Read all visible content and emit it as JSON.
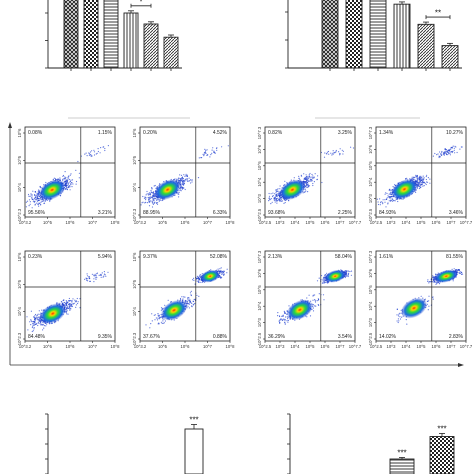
{
  "chart_data": [
    {
      "type": "bar",
      "panel": "top-left",
      "categories": [
        "",
        "",
        "",
        "",
        "",
        ""
      ],
      "values": [
        100,
        84,
        72,
        50,
        40,
        28
      ],
      "errors": [
        4,
        3,
        3,
        2,
        2,
        2
      ],
      "patterns": [
        "cross",
        "check",
        "hlines",
        "vlines",
        "dense",
        "dense"
      ],
      "annotations": [
        {
          "from": 1,
          "to": 2,
          "label": "*"
        },
        {
          "from": 2,
          "to": 3,
          "label": "*"
        },
        {
          "from": 3,
          "to": 4,
          "label": "*"
        }
      ],
      "ylim": [
        0,
        100
      ],
      "title": "",
      "xlabel": "",
      "ylabel": ""
    },
    {
      "type": "bar",
      "panel": "top-right",
      "categories": [
        "",
        "",
        "",
        "",
        "",
        ""
      ],
      "values": [
        100,
        87,
        73,
        57,
        39,
        20
      ],
      "errors": [
        4,
        3,
        3,
        2,
        2,
        2
      ],
      "patterns": [
        "cross",
        "check",
        "hlines",
        "vlines",
        "dense",
        "dense"
      ],
      "annotations": [
        {
          "from": 1,
          "to": 2,
          "label": "**"
        },
        {
          "from": 2,
          "to": 3,
          "label": "**"
        },
        {
          "from": 3,
          "to": 4,
          "label": "**"
        },
        {
          "from": 4,
          "to": 5,
          "label": "**"
        }
      ],
      "ylim": [
        0,
        100
      ],
      "title": "",
      "xlabel": "",
      "ylabel": ""
    },
    {
      "type": "scatter",
      "panel": "flow-left-group",
      "plots": [
        {
          "UL": "0.08%",
          "UR": "1.15%",
          "LL": "95.56%",
          "LR": "3.21%",
          "xticks": [
            "10^3.2",
            "10^5",
            "10^6",
            "10^7",
            "10^8"
          ],
          "yticks": [
            "10^6",
            "10^5",
            "10^4",
            "10^2.3"
          ]
        },
        {
          "UL": "0.20%",
          "UR": "4.52%",
          "LL": "88.95%",
          "LR": "6.33%",
          "xticks": [
            "10^3.2",
            "10^5",
            "10^6",
            "10^7",
            "10^8"
          ],
          "yticks": [
            "10^6",
            "10^5",
            "10^4",
            "10^2.3"
          ]
        },
        {
          "UL": "0.23%",
          "UR": "5.94%",
          "LL": "84.48%",
          "LR": "9.35%",
          "xticks": [
            "10^3.2",
            "10^5",
            "10^6",
            "10^7",
            "10^8"
          ],
          "yticks": [
            "10^6",
            "10^5",
            "10^4",
            "10^2.3"
          ]
        },
        {
          "UL": "9.37%",
          "UR": "52.08%",
          "LL": "37.67%",
          "LR": "0.88%",
          "xticks": [
            "10^3.2",
            "10^5",
            "10^6",
            "10^7",
            "10^8"
          ],
          "yticks": [
            "10^6",
            "10^5",
            "10^4",
            "10^2.3"
          ]
        }
      ]
    },
    {
      "type": "scatter",
      "panel": "flow-right-group",
      "plots": [
        {
          "UL": "0.82%",
          "UR": "3.25%",
          "LL": "93.68%",
          "LR": "2.25%",
          "xticks": [
            "10^2.5",
            "10^3",
            "10^4",
            "10^5",
            "10^6",
            "10^7",
            "10^7.7"
          ],
          "yticks": [
            "10^7.3",
            "10^6",
            "10^5",
            "10^4",
            "10^3",
            "10^2.5"
          ]
        },
        {
          "UL": "1.34%",
          "UR": "10.27%",
          "LL": "84.93%",
          "LR": "3.46%",
          "xticks": [
            "10^2.5",
            "10^3",
            "10^4",
            "10^5",
            "10^6",
            "10^7",
            "10^7.7"
          ],
          "yticks": [
            "10^7.3",
            "10^6",
            "10^5",
            "10^4",
            "10^3",
            "10^2.5"
          ]
        },
        {
          "UL": "2.13%",
          "UR": "58.04%",
          "LL": "36.29%",
          "LR": "3.54%",
          "xticks": [
            "10^2.5",
            "10^3",
            "10^4",
            "10^5",
            "10^6",
            "10^7",
            "10^7.7"
          ],
          "yticks": [
            "10^7.3",
            "10^6",
            "10^5",
            "10^4",
            "10^3",
            "10^2.5"
          ]
        },
        {
          "UL": "1.61%",
          "UR": "81.55%",
          "LL": "14.02%",
          "LR": "2.83%",
          "xticks": [
            "10^2.5",
            "10^3",
            "10^4",
            "10^5",
            "10^6",
            "10^7",
            "10^7.7"
          ],
          "yticks": [
            "10^7.3",
            "10^6",
            "10^5",
            "10^4",
            "10^3",
            "10^2.5"
          ]
        }
      ]
    },
    {
      "type": "bar",
      "panel": "bottom-left",
      "categories": [
        "",
        ""
      ],
      "values": [
        0,
        30
      ],
      "errors": [
        0,
        3
      ],
      "patterns": [
        "blank",
        "blank"
      ],
      "annotations": [
        {
          "bar": 1,
          "label": "***"
        }
      ],
      "title": "",
      "xlabel": "",
      "ylabel": ""
    },
    {
      "type": "bar",
      "panel": "bottom-right",
      "categories": [
        "",
        ""
      ],
      "values": [
        10,
        25
      ],
      "errors": [
        1,
        2
      ],
      "patterns": [
        "hlines",
        "check"
      ],
      "annotations": [
        {
          "bar": 0,
          "label": "***"
        },
        {
          "bar": 1,
          "label": "***"
        }
      ],
      "title": "",
      "xlabel": "",
      "ylabel": ""
    }
  ]
}
